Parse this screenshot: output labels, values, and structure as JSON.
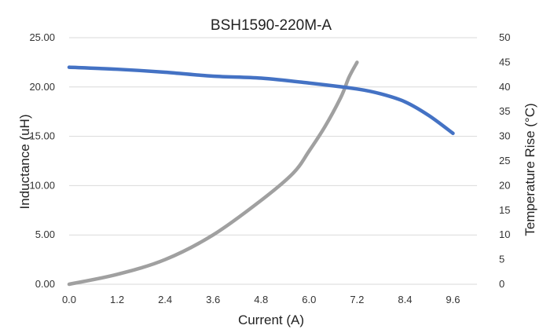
{
  "chart_data": {
    "type": "line",
    "title": "BSH1590-220M-A",
    "xlabel": "Current (A)",
    "ylabel": "Inductance (uH)",
    "y2label": "Temperature Rise (°C)",
    "x_ticks": [
      "0.0",
      "1.2",
      "2.4",
      "3.6",
      "4.8",
      "6.0",
      "7.2",
      "8.4",
      "9.6"
    ],
    "xlim": [
      0,
      10.2
    ],
    "ylim": [
      0,
      25
    ],
    "y_ticks": [
      "0.00",
      "5.00",
      "10.00",
      "15.00",
      "20.00",
      "25.00"
    ],
    "y2lim": [
      0,
      50
    ],
    "y2_ticks": [
      "0",
      "5",
      "10",
      "15",
      "20",
      "25",
      "30",
      "35",
      "40",
      "45",
      "50"
    ],
    "grid": true,
    "legend": "none",
    "series": [
      {
        "axis": "left",
        "color": "#4472c4",
        "x": [
          0,
          1.2,
          2.4,
          3.6,
          4.8,
          6.0,
          7.2,
          7.8,
          8.4,
          9.0,
          9.6
        ],
        "y": [
          22.0,
          21.8,
          21.5,
          21.1,
          20.9,
          20.4,
          19.8,
          19.3,
          18.5,
          17.1,
          15.3
        ]
      },
      {
        "axis": "right",
        "color": "#a0a0a0",
        "x": [
          0,
          1.2,
          2.4,
          3.6,
          4.8,
          5.6,
          6.0,
          6.4,
          6.8,
          7.0,
          7.2
        ],
        "y": [
          0,
          2,
          5,
          10,
          17,
          22.5,
          27,
          32,
          38,
          42,
          45
        ]
      }
    ]
  }
}
